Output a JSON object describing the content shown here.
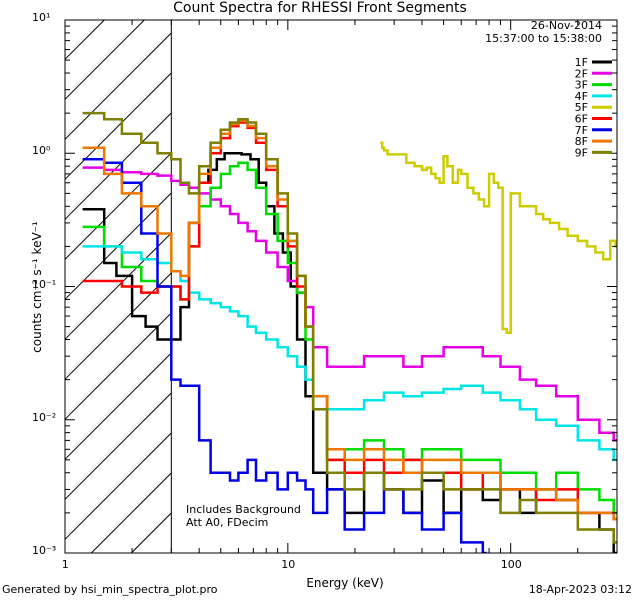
{
  "title": "Count Spectra for RHESSI Front Segments",
  "info": {
    "date": "26-Nov-2014",
    "time_range": "15:37:00 to 15:38:00"
  },
  "notes": [
    "Includes Background",
    "Att A0, FDecim"
  ],
  "footer": {
    "left": "Generated by hsi_min_spectra_plot.pro",
    "right": "18-Apr-2023 03:12"
  },
  "chart_data": {
    "type": "line",
    "title": "Count Spectra for RHESSI Front Segments",
    "xlabel": "Energy (keV)",
    "ylabel": "counts cm⁻² s⁻¹ keV⁻¹",
    "xscale": "log",
    "yscale": "log",
    "xlim": [
      1,
      300
    ],
    "ylim": [
      0.001,
      10
    ],
    "x_ticks": [
      {
        "v": 1,
        "label": "1"
      },
      {
        "v": 10,
        "label": "10"
      },
      {
        "v": 100,
        "label": "100"
      }
    ],
    "y_ticks": [
      {
        "v": 10,
        "label": "10¹"
      },
      {
        "v": 1,
        "label": "10⁰"
      },
      {
        "v": 0.1,
        "label": "10⁻¹"
      },
      {
        "v": 0.01,
        "label": "10⁻²"
      },
      {
        "v": 0.001,
        "label": "10⁻³"
      }
    ],
    "excluded_region": [
      1,
      3
    ],
    "legend_position": "top-right",
    "series": [
      {
        "name": "1F",
        "color": "#000000",
        "x": [
          1.2,
          1.5,
          1.7,
          2.0,
          2.3,
          2.6,
          3.0,
          3.3,
          3.6,
          4.0,
          4.4,
          4.8,
          5.2,
          5.7,
          6.2,
          6.8,
          7.4,
          8.0,
          8.7,
          9.5,
          10.3,
          11.0,
          12.0,
          13,
          15,
          18,
          22,
          27,
          33,
          40,
          50,
          60,
          75,
          90,
          110,
          130,
          160,
          200,
          250,
          290
        ],
        "y": [
          0.38,
          0.15,
          0.12,
          0.06,
          0.05,
          0.04,
          0.04,
          0.07,
          0.3,
          0.6,
          0.75,
          0.9,
          1.0,
          1.0,
          0.98,
          0.9,
          0.6,
          0.4,
          0.25,
          0.18,
          0.1,
          0.04,
          0.015,
          0.004,
          0.003,
          0.002,
          0.004,
          0.003,
          0.002,
          0.0035,
          0.002,
          0.003,
          0.0025,
          0.003,
          0.002,
          0.003,
          0.0025,
          0.002,
          0.0015,
          0.001
        ]
      },
      {
        "name": "2F",
        "color": "#e600e6",
        "x": [
          1.2,
          1.5,
          1.8,
          2.2,
          2.6,
          3.0,
          3.3,
          3.6,
          4.0,
          4.5,
          5.0,
          5.5,
          6.0,
          6.6,
          7.2,
          8.0,
          9.0,
          10.0,
          11.0,
          12.0,
          13,
          15,
          18,
          22,
          27,
          33,
          40,
          50,
          60,
          75,
          90,
          110,
          130,
          160,
          200,
          250,
          290
        ],
        "y": [
          0.78,
          0.75,
          0.72,
          0.7,
          0.68,
          0.62,
          0.58,
          0.55,
          0.5,
          0.45,
          0.4,
          0.35,
          0.3,
          0.26,
          0.22,
          0.18,
          0.14,
          0.11,
          0.09,
          0.07,
          0.035,
          0.025,
          0.025,
          0.03,
          0.03,
          0.025,
          0.03,
          0.035,
          0.035,
          0.03,
          0.025,
          0.02,
          0.018,
          0.015,
          0.01,
          0.008,
          0.007
        ]
      },
      {
        "name": "3F",
        "color": "#00dd00",
        "x": [
          1.2,
          1.5,
          1.8,
          2.2,
          2.6,
          3.0,
          3.3,
          3.6,
          4.0,
          4.5,
          5.0,
          5.5,
          6.0,
          6.6,
          7.2,
          8.0,
          9.0,
          10.0,
          11.0,
          12.0,
          13,
          15,
          18,
          22,
          27,
          33,
          40,
          50,
          60,
          75,
          90,
          110,
          130,
          160,
          200,
          250,
          290
        ],
        "y": [
          0.28,
          0.2,
          0.14,
          0.11,
          0.1,
          0.1,
          0.08,
          0.2,
          0.4,
          0.55,
          0.7,
          0.8,
          0.85,
          0.75,
          0.55,
          0.35,
          0.22,
          0.15,
          0.09,
          0.04,
          0.012,
          0.005,
          0.006,
          0.007,
          0.006,
          0.005,
          0.006,
          0.006,
          0.005,
          0.005,
          0.004,
          0.004,
          0.003,
          0.004,
          0.003,
          0.0025,
          0.002
        ]
      },
      {
        "name": "4F",
        "color": "#00e6e6",
        "x": [
          1.2,
          1.5,
          1.8,
          2.2,
          2.6,
          3.0,
          3.3,
          3.6,
          4.0,
          4.5,
          5.0,
          5.5,
          6.0,
          6.6,
          7.2,
          8.0,
          9.0,
          10.0,
          11.0,
          12.0,
          13,
          15,
          18,
          22,
          27,
          33,
          40,
          50,
          60,
          75,
          90,
          110,
          130,
          160,
          200,
          250,
          290
        ],
        "y": [
          0.2,
          0.2,
          0.18,
          0.16,
          0.15,
          0.13,
          0.11,
          0.09,
          0.08,
          0.075,
          0.07,
          0.065,
          0.06,
          0.05,
          0.045,
          0.04,
          0.035,
          0.03,
          0.025,
          0.02,
          0.015,
          0.012,
          0.012,
          0.014,
          0.016,
          0.015,
          0.016,
          0.017,
          0.018,
          0.016,
          0.014,
          0.012,
          0.01,
          0.009,
          0.007,
          0.006,
          0.005
        ]
      },
      {
        "name": "5F",
        "color": "#cccc00",
        "x": [
          26,
          26.5,
          27,
          28,
          34,
          37,
          40,
          42,
          44,
          46,
          48,
          50,
          52,
          55,
          58,
          60,
          64,
          68,
          72,
          76,
          80,
          84,
          88,
          92,
          96,
          100,
          110,
          120,
          130,
          140,
          150,
          165,
          180,
          200,
          220,
          240,
          260,
          280,
          295
        ],
        "y": [
          1.2,
          1.1,
          1.05,
          0.98,
          0.85,
          0.8,
          0.75,
          0.78,
          0.7,
          0.65,
          0.6,
          0.95,
          0.8,
          0.6,
          0.75,
          0.7,
          0.55,
          0.5,
          0.45,
          0.4,
          0.7,
          0.6,
          0.55,
          0.048,
          0.045,
          0.5,
          0.4,
          0.4,
          0.35,
          0.32,
          0.3,
          0.27,
          0.24,
          0.22,
          0.2,
          0.18,
          0.16,
          0.22,
          0.2
        ]
      },
      {
        "name": "6F",
        "color": "#ff0000",
        "x": [
          1.2,
          1.5,
          1.8,
          2.2,
          2.6,
          3.0,
          3.3,
          3.6,
          4.0,
          4.5,
          5.0,
          5.5,
          6.0,
          6.6,
          7.2,
          8.0,
          9.0,
          10.0,
          11.0,
          12.0,
          13,
          15,
          18,
          22,
          27,
          33,
          40,
          50,
          60,
          75,
          90,
          110,
          130,
          160,
          200,
          250,
          290
        ],
        "y": [
          0.11,
          0.11,
          0.1,
          0.09,
          0.1,
          0.1,
          0.08,
          0.2,
          0.6,
          1.0,
          1.3,
          1.6,
          1.7,
          1.55,
          1.2,
          0.75,
          0.4,
          0.2,
          0.1,
          0.05,
          0.015,
          0.005,
          0.004,
          0.005,
          0.004,
          0.005,
          0.004,
          0.004,
          0.003,
          0.004,
          0.003,
          0.003,
          0.0025,
          0.003,
          0.002,
          0.002,
          0.0018
        ]
      },
      {
        "name": "7F",
        "color": "#0000e6",
        "x": [
          1.2,
          1.5,
          1.8,
          2.2,
          2.6,
          3.0,
          3.3,
          3.6,
          4.0,
          4.5,
          5.0,
          5.5,
          6.0,
          6.6,
          7.2,
          8.0,
          9.0,
          10.0,
          11.0,
          12.0,
          13,
          15,
          18,
          22,
          27,
          33,
          40,
          50,
          60,
          75
        ],
        "y": [
          0.9,
          0.85,
          0.6,
          0.25,
          0.1,
          0.02,
          0.018,
          0.018,
          0.007,
          0.004,
          0.004,
          0.0035,
          0.004,
          0.005,
          0.0035,
          0.004,
          0.003,
          0.004,
          0.0035,
          0.003,
          0.002,
          0.003,
          0.0015,
          0.002,
          0.003,
          0.002,
          0.0015,
          0.002,
          0.0012,
          0.001
        ]
      },
      {
        "name": "8F",
        "color": "#ee7700",
        "x": [
          1.2,
          1.5,
          1.8,
          2.2,
          2.6,
          3.0,
          3.3,
          3.6,
          4.0,
          4.5,
          5.0,
          5.5,
          6.0,
          6.6,
          7.2,
          8.0,
          9.0,
          10.0,
          11.0,
          12.0,
          13,
          15,
          18,
          22,
          27,
          33,
          40,
          50,
          60,
          75,
          90,
          110,
          130,
          160,
          200,
          250,
          290
        ],
        "y": [
          1.1,
          0.7,
          0.5,
          0.4,
          0.25,
          0.13,
          0.12,
          0.3,
          0.7,
          1.1,
          1.4,
          1.65,
          1.75,
          1.6,
          1.3,
          0.8,
          0.45,
          0.22,
          0.12,
          0.05,
          0.015,
          0.006,
          0.005,
          0.006,
          0.005,
          0.004,
          0.005,
          0.005,
          0.004,
          0.004,
          0.003,
          0.003,
          0.003,
          0.0025,
          0.002,
          0.002,
          0.0018
        ]
      },
      {
        "name": "9F",
        "color": "#7f7f00",
        "x": [
          1.2,
          1.5,
          1.8,
          2.2,
          2.6,
          3.0,
          3.3,
          3.6,
          4.0,
          4.5,
          5.0,
          5.5,
          6.0,
          6.6,
          7.2,
          8.0,
          9.0,
          10.0,
          11.0,
          12.0,
          13,
          15,
          18,
          22,
          27,
          33,
          40,
          50,
          60,
          75,
          90,
          110,
          130,
          160,
          200,
          250,
          290
        ],
        "y": [
          2.0,
          1.8,
          1.4,
          1.2,
          1.0,
          0.9,
          0.6,
          0.5,
          0.8,
          1.2,
          1.5,
          1.7,
          1.8,
          1.7,
          1.4,
          0.9,
          0.5,
          0.25,
          0.12,
          0.05,
          0.012,
          0.004,
          0.003,
          0.004,
          0.003,
          0.003,
          0.004,
          0.003,
          0.003,
          0.003,
          0.002,
          0.0025,
          0.002,
          0.002,
          0.0015,
          0.0015,
          0.0012
        ]
      }
    ]
  }
}
